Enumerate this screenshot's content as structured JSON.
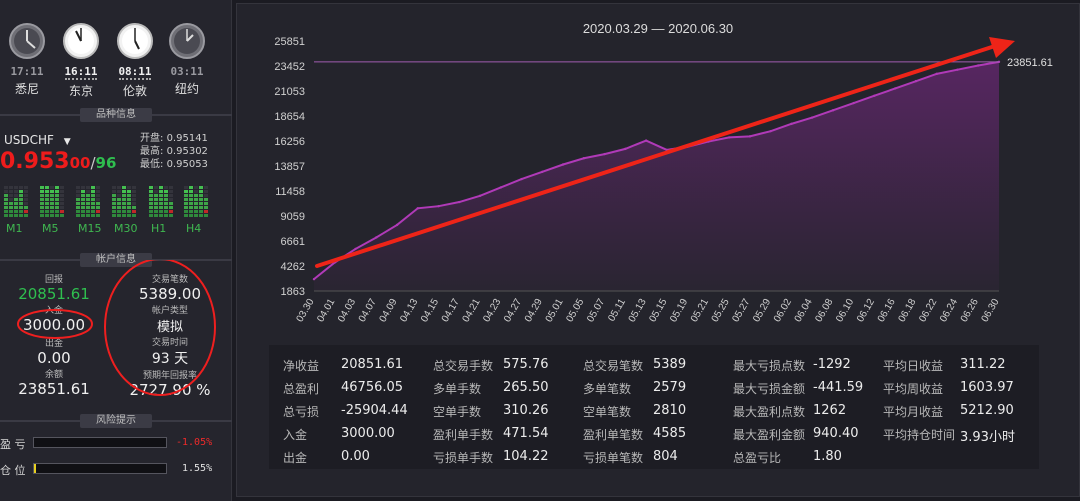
{
  "clocks": [
    {
      "time": "17:11",
      "city": "悉尼"
    },
    {
      "time": "16:11",
      "city": "东京"
    },
    {
      "time": "08:11",
      "city": "伦敦"
    },
    {
      "time": "03:11",
      "city": "纽约"
    }
  ],
  "instrument_section": {
    "title": "品种信息"
  },
  "instrument": {
    "symbol": "USDCHF",
    "open_label": "开盘",
    "open_value": "0.95141",
    "high_label": "最高",
    "high_value": "0.95302",
    "low_label": "最低",
    "low_value": "0.95053",
    "price_main": "0.953",
    "price_pips": "00",
    "price_sep": "/",
    "price_ask": "96"
  },
  "timeframes": [
    "M1",
    "M5",
    "M15",
    "M30",
    "H1",
    "H4"
  ],
  "account_section": {
    "title": "帐户信息"
  },
  "account": {
    "return_label": "回报",
    "return_value": "20851.61",
    "deposit_label": "入金",
    "deposit_value": "3000.00",
    "withdraw_label": "出金",
    "withdraw_value": "0.00",
    "balance_label": "余额",
    "balance_value": "23851.61",
    "trades_label": "交易笔数",
    "trades_value": "5389.00",
    "type_label": "帐户类型",
    "type_value": "模拟",
    "duration_label": "交易时间",
    "duration_value": "93 天",
    "annual_label": "预期年回报率",
    "annual_value": "2727.90 %"
  },
  "risk_section": {
    "title": "风险提示"
  },
  "risk": {
    "pnl_label": "盈 亏",
    "pnl_value": "-1.05%",
    "pnl_fill": 0.0,
    "pos_label": "仓 位",
    "pos_value": "1.55%",
    "pos_fill": 0.0155
  },
  "chart_data": {
    "type": "area",
    "title": "2020.03.29 — 2020.06.30",
    "y_ticks": [
      "25851",
      "23452",
      "21053",
      "18654",
      "16256",
      "13857",
      "11458",
      "9059",
      "6661",
      "4262",
      "1863"
    ],
    "ylim": [
      1863,
      25851
    ],
    "x_ticks": [
      "03.30",
      "04.01",
      "04.03",
      "04.07",
      "04.09",
      "04.13",
      "04.15",
      "04.17",
      "04.21",
      "04.23",
      "04.27",
      "04.29",
      "05.01",
      "05.05",
      "05.07",
      "05.11",
      "05.13",
      "05.15",
      "05.19",
      "05.21",
      "05.25",
      "05.27",
      "05.29",
      "06.02",
      "06.04",
      "06.08",
      "06.10",
      "06.12",
      "06.16",
      "06.18",
      "06.22",
      "06.24",
      "06.26",
      "06.30"
    ],
    "last_value_label": "23851.61",
    "series": [
      {
        "values": [
          3000,
          4600,
          5900,
          7000,
          8200,
          9800,
          10000,
          10400,
          11000,
          11800,
          12600,
          13300,
          14000,
          14600,
          15000,
          15500,
          16300,
          15400,
          15700,
          16200,
          16600,
          16700,
          17200,
          17900,
          18500,
          19200,
          19900,
          20600,
          21300,
          22000,
          22700,
          23100,
          23500,
          23851.61
        ]
      }
    ],
    "colors": {
      "line": "#b03ab8",
      "fill_top": "#5a2664",
      "fill_bottom": "#2a2532",
      "ref_line": "#a05cb0",
      "arrow": "#ee2418"
    }
  },
  "stats": [
    [
      {
        "k": "净收益",
        "v": "20851.61"
      },
      {
        "k": "总盈利",
        "v": "46756.05"
      },
      {
        "k": "总亏损",
        "v": "-25904.44"
      },
      {
        "k": "入金",
        "v": "3000.00"
      },
      {
        "k": "出金",
        "v": "0.00"
      }
    ],
    [
      {
        "k": "总交易手数",
        "v": "575.76"
      },
      {
        "k": "多单手数",
        "v": "265.50"
      },
      {
        "k": "空单手数",
        "v": "310.26"
      },
      {
        "k": "盈利单手数",
        "v": "471.54"
      },
      {
        "k": "亏损单手数",
        "v": "104.22"
      }
    ],
    [
      {
        "k": "总交易笔数",
        "v": "5389"
      },
      {
        "k": "多单笔数",
        "v": "2579"
      },
      {
        "k": "空单笔数",
        "v": "2810"
      },
      {
        "k": "盈利单笔数",
        "v": "4585"
      },
      {
        "k": "亏损单笔数",
        "v": "804"
      }
    ],
    [
      {
        "k": "最大亏损点数",
        "v": "-1292"
      },
      {
        "k": "最大亏损金额",
        "v": "-441.59"
      },
      {
        "k": "最大盈利点数",
        "v": "1262"
      },
      {
        "k": "最大盈利金额",
        "v": "940.40"
      },
      {
        "k": "总盈亏比",
        "v": "1.80"
      }
    ],
    [
      {
        "k": "平均日收益",
        "v": "311.22"
      },
      {
        "k": "平均周收益",
        "v": "1603.97"
      },
      {
        "k": "平均月收益",
        "v": "5212.90"
      },
      {
        "k": "平均持仓时间",
        "v": "3.93小时"
      }
    ]
  ]
}
